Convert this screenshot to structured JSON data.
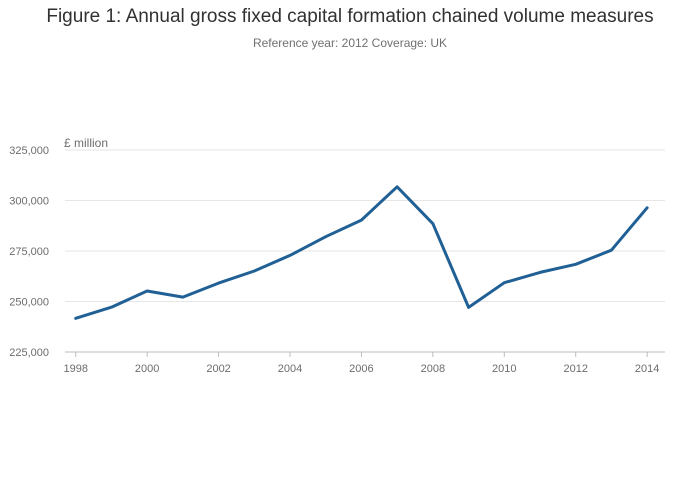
{
  "chart_data": {
    "type": "line",
    "title": "Figure 1: Annual gross fixed capital formation chained volume measures",
    "subtitle": "Reference year: 2012 Coverage: UK",
    "ylabel": "£ million",
    "xlabel": "",
    "ylim": [
      225000,
      325000
    ],
    "yticks": [
      225000,
      250000,
      275000,
      300000,
      325000
    ],
    "ytick_labels": [
      "225,000",
      "250,000",
      "275,000",
      "300,000",
      "325,000"
    ],
    "xlim": [
      1997.7,
      2014.5
    ],
    "xticks": [
      1998,
      2000,
      2002,
      2004,
      2006,
      2008,
      2010,
      2012,
      2014
    ],
    "xtick_labels": [
      "1998",
      "2000",
      "2002",
      "2004",
      "2006",
      "2008",
      "2010",
      "2012",
      "2014"
    ],
    "grid": true,
    "legend": "none",
    "series": [
      {
        "color": "#206095",
        "x": [
          1998,
          1999,
          2000,
          2001,
          2002,
          2003,
          2004,
          2005,
          2006,
          2007,
          2008,
          2009,
          2010,
          2011,
          2012,
          2013,
          2014
        ],
        "y": [
          241700,
          247200,
          255200,
          252200,
          259100,
          265100,
          272800,
          282100,
          290300,
          306800,
          288500,
          247100,
          259300,
          264400,
          268400,
          275400,
          296400
        ]
      }
    ]
  }
}
